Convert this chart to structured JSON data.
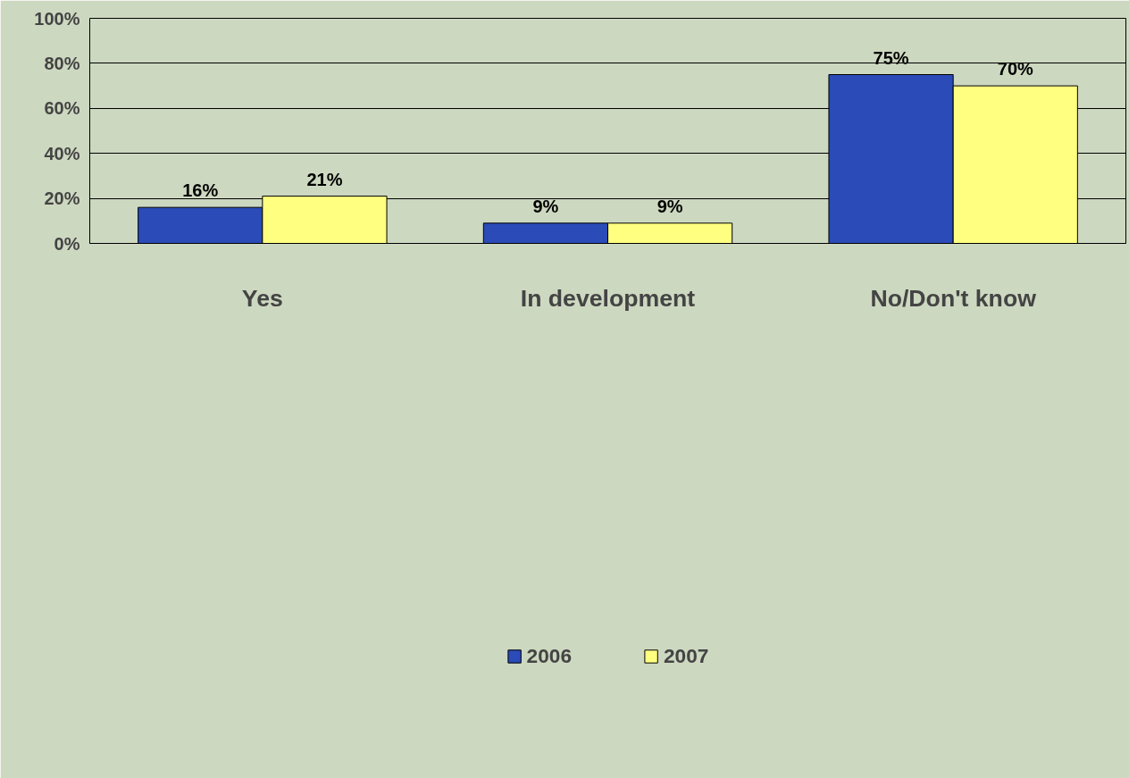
{
  "chart_data": {
    "type": "bar",
    "categories": [
      "Yes",
      "In development",
      "No/Don't know"
    ],
    "series": [
      {
        "name": "2006",
        "color": "#2a4bb8",
        "values": [
          16,
          9,
          75
        ],
        "value_labels": [
          "16%",
          "9%",
          "75%"
        ]
      },
      {
        "name": "2007",
        "color": "#ffff80",
        "values": [
          21,
          9,
          70
        ],
        "value_labels": [
          "21%",
          "9%",
          "70%"
        ]
      }
    ],
    "ylim": [
      0,
      100
    ],
    "yticks": [
      {
        "value": 0,
        "label": "0%"
      },
      {
        "value": 20,
        "label": "20%"
      },
      {
        "value": 40,
        "label": "40%"
      },
      {
        "value": 60,
        "label": "60%"
      },
      {
        "value": 80,
        "label": "80%"
      },
      {
        "value": 100,
        "label": "100%"
      }
    ],
    "grid": "y",
    "legend": "bottom"
  }
}
